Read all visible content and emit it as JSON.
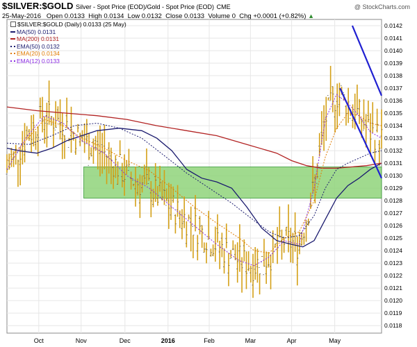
{
  "header": {
    "symbol": "$SILVER:$GOLD",
    "description": "Silver - Spot Price (EOD)/Gold - Spot Price (EOD)",
    "exchange": "CME",
    "date": "25-May-2016",
    "open_label": "Open",
    "open": "0.0133",
    "high_label": "High",
    "high": "0.0134",
    "low_label": "Low",
    "low": "0.0132",
    "close_label": "Close",
    "close": "0.0133",
    "volume_label": "Volume",
    "volume": "0",
    "chg_label": "Chg",
    "chg": "+0.0001 (+0.82%)",
    "chg_arrow": "▲",
    "watermark": "@ StockCharts.com"
  },
  "legend": [
    {
      "text": "$SILVER:$GOLD (Daily) 0.0133 (25 May)",
      "color": "#ffffff",
      "style": "box"
    },
    {
      "text": "MA(50) 0.0131",
      "color": "#1a1a6e",
      "style": "solid"
    },
    {
      "text": "MA(200) 0.0131",
      "color": "#b22222",
      "style": "solid"
    },
    {
      "text": "EMA(50) 0.0132",
      "color": "#1a1a6e",
      "style": "dotted"
    },
    {
      "text": "EMA(20) 0.0134",
      "color": "#e07b00",
      "style": "dotted"
    },
    {
      "text": "EMA(12) 0.0133",
      "color": "#8a2be2",
      "style": "dotted"
    }
  ],
  "chart_data": {
    "type": "line",
    "title": "$SILVER:$GOLD",
    "xlabel": "",
    "ylabel": "",
    "ylim": [
      0.01174,
      0.01425
    ],
    "grid": true,
    "x_ticks": [
      "Oct",
      "Nov",
      "Dec",
      "2016",
      "Feb",
      "Mar",
      "Apr",
      "May"
    ],
    "y_ticks": [
      "0.0142",
      "0.0141",
      "0.0140",
      "0.0139",
      "0.0138",
      "0.0137",
      "0.0136",
      "0.0135",
      "0.0134",
      "0.0133",
      "0.0132",
      "0.0131",
      "0.0130",
      "0.0129",
      "0.0128",
      "0.0127",
      "0.0126",
      "0.0125",
      "0.0124",
      "0.0123",
      "0.0122",
      "0.0121",
      "0.0120",
      "0.0119",
      "0.0118"
    ],
    "price_bar_color": "#d4a017",
    "support_zone": {
      "low": 0.01282,
      "high": 0.01307,
      "color": "#8fd47a"
    },
    "series": [
      {
        "name": "MA(50)",
        "color": "#1a1a6e",
        "dashed": false,
        "points": [
          [
            0,
            0.01322
          ],
          [
            0.03,
            0.0132
          ],
          [
            0.08,
            0.01318
          ],
          [
            0.12,
            0.01322
          ],
          [
            0.16,
            0.01328
          ],
          [
            0.2,
            0.01332
          ],
          [
            0.24,
            0.01336
          ],
          [
            0.3,
            0.01338
          ],
          [
            0.36,
            0.01336
          ],
          [
            0.4,
            0.0133
          ],
          [
            0.44,
            0.0132
          ],
          [
            0.48,
            0.01305
          ],
          [
            0.52,
            0.01298
          ],
          [
            0.56,
            0.01295
          ],
          [
            0.6,
            0.0129
          ],
          [
            0.64,
            0.01275
          ],
          [
            0.68,
            0.01258
          ],
          [
            0.72,
            0.01248
          ],
          [
            0.76,
            0.01245
          ],
          [
            0.79,
            0.01243
          ],
          [
            0.82,
            0.01248
          ],
          [
            0.85,
            0.01265
          ],
          [
            0.88,
            0.01282
          ],
          [
            0.91,
            0.01292
          ],
          [
            0.94,
            0.01298
          ],
          [
            0.97,
            0.01305
          ],
          [
            1.0,
            0.0131
          ]
        ]
      },
      {
        "name": "MA(200)",
        "color": "#b22222",
        "dashed": false,
        "points": [
          [
            0,
            0.01355
          ],
          [
            0.08,
            0.01352
          ],
          [
            0.16,
            0.0135
          ],
          [
            0.24,
            0.01348
          ],
          [
            0.32,
            0.01345
          ],
          [
            0.4,
            0.0134
          ],
          [
            0.48,
            0.01336
          ],
          [
            0.56,
            0.01332
          ],
          [
            0.64,
            0.01325
          ],
          [
            0.72,
            0.01318
          ],
          [
            0.76,
            0.01312
          ],
          [
            0.8,
            0.01308
          ],
          [
            0.84,
            0.01306
          ],
          [
            0.88,
            0.01306
          ],
          [
            0.92,
            0.01307
          ],
          [
            0.96,
            0.01308
          ],
          [
            1.0,
            0.0131
          ]
        ]
      },
      {
        "name": "EMA(50)",
        "color": "#1a1a6e",
        "dashed": true,
        "points": [
          [
            0,
            0.01326
          ],
          [
            0.06,
            0.01325
          ],
          [
            0.12,
            0.01332
          ],
          [
            0.18,
            0.0134
          ],
          [
            0.24,
            0.01342
          ],
          [
            0.3,
            0.01338
          ],
          [
            0.36,
            0.0133
          ],
          [
            0.42,
            0.01316
          ],
          [
            0.48,
            0.01302
          ],
          [
            0.54,
            0.0129
          ],
          [
            0.6,
            0.01278
          ],
          [
            0.66,
            0.01264
          ],
          [
            0.7,
            0.01255
          ],
          [
            0.74,
            0.0125
          ],
          [
            0.78,
            0.01252
          ],
          [
            0.82,
            0.01268
          ],
          [
            0.85,
            0.0129
          ],
          [
            0.88,
            0.01305
          ],
          [
            0.91,
            0.0131
          ],
          [
            0.94,
            0.01314
          ],
          [
            0.97,
            0.01318
          ],
          [
            1.0,
            0.0132
          ]
        ]
      },
      {
        "name": "EMA(20)",
        "color": "#e07b00",
        "dashed": true,
        "points": [
          [
            0,
            0.01312
          ],
          [
            0.05,
            0.01328
          ],
          [
            0.1,
            0.01345
          ],
          [
            0.15,
            0.0134
          ],
          [
            0.2,
            0.0133
          ],
          [
            0.26,
            0.01322
          ],
          [
            0.32,
            0.01312
          ],
          [
            0.38,
            0.01304
          ],
          [
            0.44,
            0.0129
          ],
          [
            0.5,
            0.01275
          ],
          [
            0.56,
            0.01262
          ],
          [
            0.62,
            0.0125
          ],
          [
            0.66,
            0.0124
          ],
          [
            0.7,
            0.01238
          ],
          [
            0.74,
            0.0125
          ],
          [
            0.78,
            0.01255
          ],
          [
            0.82,
            0.0128
          ],
          [
            0.85,
            0.01315
          ],
          [
            0.88,
            0.01338
          ],
          [
            0.91,
            0.0135
          ],
          [
            0.94,
            0.01348
          ],
          [
            0.97,
            0.01342
          ],
          [
            1.0,
            0.0134
          ]
        ]
      },
      {
        "name": "EMA(12)",
        "color": "#8a2be2",
        "dashed": true,
        "points": [
          [
            0,
            0.01305
          ],
          [
            0.05,
            0.0133
          ],
          [
            0.1,
            0.01348
          ],
          [
            0.15,
            0.01342
          ],
          [
            0.2,
            0.01328
          ],
          [
            0.26,
            0.01318
          ],
          [
            0.32,
            0.013
          ],
          [
            0.38,
            0.0129
          ],
          [
            0.44,
            0.01275
          ],
          [
            0.5,
            0.0126
          ],
          [
            0.56,
            0.01245
          ],
          [
            0.62,
            0.01232
          ],
          [
            0.66,
            0.01228
          ],
          [
            0.7,
            0.01235
          ],
          [
            0.74,
            0.01248
          ],
          [
            0.78,
            0.01245
          ],
          [
            0.82,
            0.0129
          ],
          [
            0.85,
            0.01345
          ],
          [
            0.88,
            0.01365
          ],
          [
            0.91,
            0.01358
          ],
          [
            0.94,
            0.01348
          ],
          [
            0.97,
            0.01335
          ],
          [
            1.0,
            0.0133
          ]
        ]
      }
    ],
    "trendlines": [
      {
        "color": "#1f1fd1",
        "from": [
          0.922,
          0.0142
        ],
        "to": [
          1.0,
          0.01364
        ]
      },
      {
        "color": "#1f1fd1",
        "from": [
          0.889,
          0.0137
        ],
        "to": [
          1.0,
          0.01298
        ]
      }
    ]
  }
}
